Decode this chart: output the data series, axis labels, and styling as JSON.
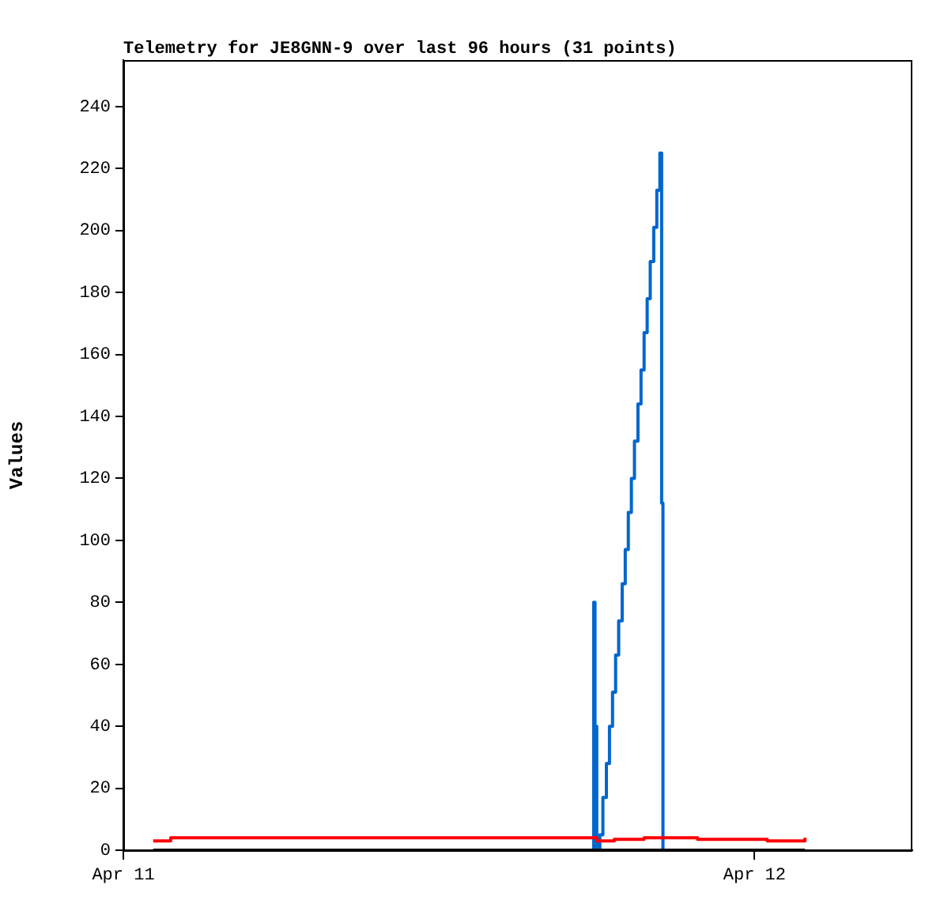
{
  "chart_data": {
    "type": "step",
    "title": "Telemetry for JE8GNN-9 over last 96 hours (31 points)",
    "ylabel": "Values",
    "xlim": [
      "--04-11T00:00",
      "--04-12T06:00"
    ],
    "xticks": [
      {
        "value": "--04-11",
        "label": "Apr 11"
      },
      {
        "value": "--04-12",
        "label": "Apr 12"
      }
    ],
    "ylim": [
      0,
      255
    ],
    "yticks": [
      0,
      20,
      40,
      60,
      80,
      100,
      120,
      140,
      160,
      180,
      200,
      220,
      240
    ],
    "grid": false,
    "legend": false,
    "marker": "none",
    "series": [
      {
        "color": "#000000",
        "x": [
          "--04-11T01:08",
          "--04-12T01:55"
        ],
        "values": [
          0,
          0
        ]
      },
      {
        "color": "#ff0000",
        "x": [
          "--04-11T01:08",
          "--04-11T01:48",
          "--04-11T18:00",
          "--04-11T18:40",
          "--04-11T19:48",
          "--04-11T21:50",
          "--04-12T00:29",
          "--04-12T01:55"
        ],
        "values": [
          3,
          4,
          3,
          3.5,
          4,
          3.5,
          3,
          4
        ]
      },
      {
        "color": "#0066cc",
        "x": [
          "--04-11T17:49",
          "--04-11T17:53",
          "--04-11T17:56",
          "--04-11T18:00",
          "--04-11T18:07",
          "--04-11T18:14",
          "--04-11T18:22",
          "--04-11T18:29",
          "--04-11T18:36",
          "--04-11T18:43",
          "--04-11T18:50",
          "--04-11T18:58",
          "--04-11T19:05",
          "--04-11T19:12",
          "--04-11T19:19",
          "--04-11T19:26",
          "--04-11T19:34",
          "--04-11T19:41",
          "--04-11T19:48",
          "--04-11T19:55",
          "--04-11T20:02",
          "--04-11T20:10",
          "--04-11T20:17",
          "--04-11T20:24",
          "--04-11T20:28",
          "--04-11T20:31"
        ],
        "values": [
          0,
          80,
          40,
          0,
          5,
          17,
          28,
          40,
          51,
          63,
          74,
          86,
          97,
          109,
          120,
          132,
          144,
          155,
          167,
          178,
          190,
          201,
          213,
          225,
          112,
          0
        ]
      }
    ]
  }
}
